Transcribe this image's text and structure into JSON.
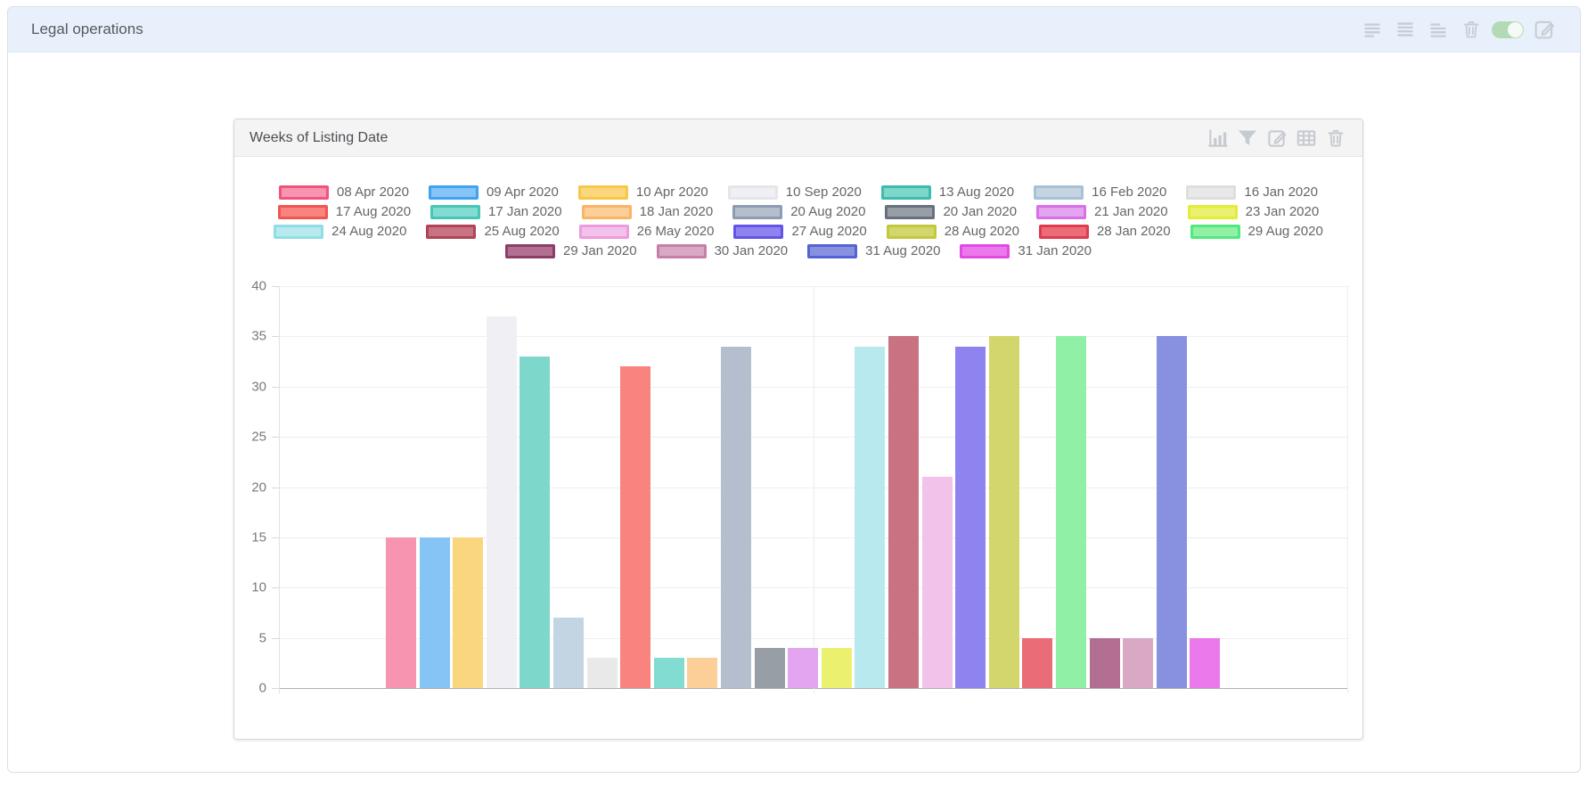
{
  "header": {
    "title": "Legal operations",
    "icons": [
      "rows-compact-icon",
      "rows-medium-icon",
      "rows-tall-icon",
      "trash-icon",
      "toggle-switch",
      "edit-icon"
    ],
    "toggle": {
      "state": "on",
      "track_color": "#b2dab5"
    }
  },
  "card": {
    "title": "Weeks of Listing Date",
    "toolbar_icons": [
      "bar-chart-icon",
      "filter-icon",
      "edit-chart-icon",
      "table-icon",
      "delete-chart-icon"
    ]
  },
  "chart_data": {
    "type": "bar",
    "title": "Weeks of Listing Date",
    "xlabel": "",
    "ylabel": "",
    "ylim": [
      0,
      40
    ],
    "yticks": [
      0,
      5,
      10,
      15,
      20,
      25,
      30,
      35,
      40
    ],
    "grid": true,
    "legend_position": "top",
    "legend_items_per_row": 7,
    "series": [
      {
        "name": "08 Apr 2020",
        "value": 15,
        "fill": "#f795b0",
        "border": "#f2537d"
      },
      {
        "name": "09 Apr 2020",
        "value": 15,
        "fill": "#85c4f5",
        "border": "#3fa3f2"
      },
      {
        "name": "10 Apr 2020",
        "value": 15,
        "fill": "#fad77f",
        "border": "#f8c748"
      },
      {
        "name": "10 Sep 2020",
        "value": 37,
        "fill": "#f0f0f4",
        "border": "#e6e6ea"
      },
      {
        "name": "13 Aug 2020",
        "value": 33,
        "fill": "#7ed7cb",
        "border": "#3ebcae"
      },
      {
        "name": "16 Feb 2020",
        "value": 7,
        "fill": "#c3d4e2",
        "border": "#a9c1d4"
      },
      {
        "name": "16 Jan 2020",
        "value": 3,
        "fill": "#e9e9e9",
        "border": "#dedede"
      },
      {
        "name": "17 Aug 2020",
        "value": 32,
        "fill": "#f8837f",
        "border": "#f25551"
      },
      {
        "name": "17 Jan 2020",
        "value": 3,
        "fill": "#83dcd1",
        "border": "#47c5b6"
      },
      {
        "name": "18 Jan 2020",
        "value": 3,
        "fill": "#fbcf97",
        "border": "#f9b465"
      },
      {
        "name": "20 Aug 2020",
        "value": 34,
        "fill": "#b4becc",
        "border": "#8c9cb2"
      },
      {
        "name": "20 Jan 2020",
        "value": 4,
        "fill": "#989ea6",
        "border": "#67707c"
      },
      {
        "name": "21 Jan 2020",
        "value": 4,
        "fill": "#e3a4f0",
        "border": "#d96fe8"
      },
      {
        "name": "23 Jan 2020",
        "value": 4,
        "fill": "#ebf06e",
        "border": "#e3ec39"
      },
      {
        "name": "24 Aug 2020",
        "value": 34,
        "fill": "#b8e9ee",
        "border": "#8fdce4"
      },
      {
        "name": "25 Aug 2020",
        "value": 35,
        "fill": "#c97382",
        "border": "#af4458"
      },
      {
        "name": "26 May 2020",
        "value": 21,
        "fill": "#f3c2ea",
        "border": "#ee9adf"
      },
      {
        "name": "27 Aug 2020",
        "value": 34,
        "fill": "#8f83f0",
        "border": "#6354e8"
      },
      {
        "name": "28 Aug 2020",
        "value": 35,
        "fill": "#d2d66c",
        "border": "#c2c93b"
      },
      {
        "name": "28 Jan 2020",
        "value": 5,
        "fill": "#ea6c77",
        "border": "#e03a4e"
      },
      {
        "name": "29 Aug 2020",
        "value": 35,
        "fill": "#8ff0a6",
        "border": "#52e87e"
      },
      {
        "name": "29 Jan 2020",
        "value": 5,
        "fill": "#b26f92",
        "border": "#8e3e66"
      },
      {
        "name": "30 Jan 2020",
        "value": 5,
        "fill": "#d9a8c5",
        "border": "#c77ea8"
      },
      {
        "name": "31 Aug 2020",
        "value": 35,
        "fill": "#8791e0",
        "border": "#5463d4"
      },
      {
        "name": "31 Jan 2020",
        "value": 5,
        "fill": "#eb79ec",
        "border": "#e14be4"
      }
    ]
  }
}
